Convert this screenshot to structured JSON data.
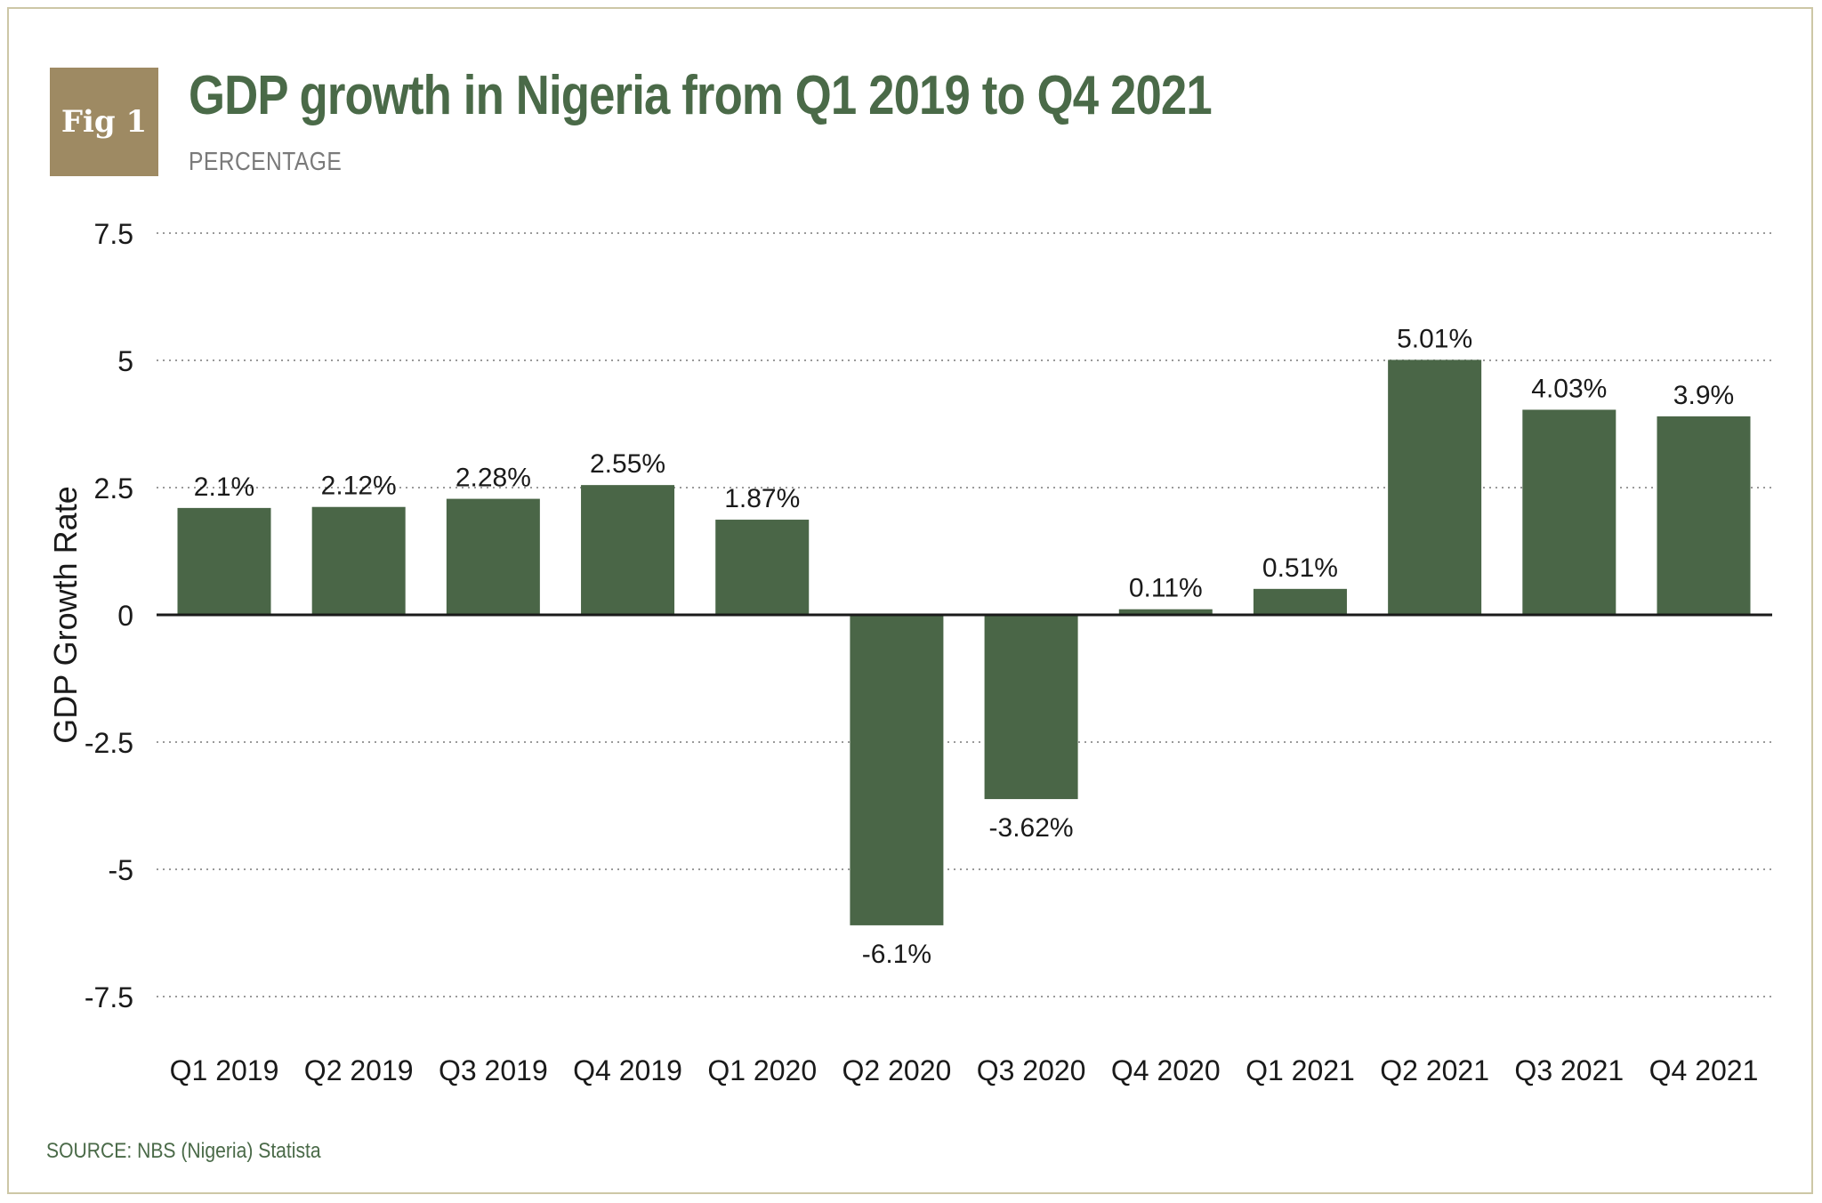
{
  "header": {
    "fig_label": "Fig 1",
    "title": "GDP growth in Nigeria from Q1 2019 to Q4 2021",
    "subtitle": "PERCENTAGE"
  },
  "footer": {
    "source": "SOURCE: NBS (Nigeria) Statista"
  },
  "colors": {
    "bar": "#4a6647",
    "title": "#4a6a48",
    "badge": "#9e8a63",
    "frame": "#cdc7a6",
    "grid": "#9a9a9a",
    "zero_line": "#1a1a1a"
  },
  "chart_data": {
    "type": "bar",
    "title": "GDP growth in Nigeria from Q1 2019 to Q4 2021",
    "subtitle": "PERCENTAGE",
    "xlabel": "",
    "ylabel": "GDP Growth Rate",
    "ylim": [
      -7.5,
      7.5
    ],
    "yticks": [
      7.5,
      5,
      2.5,
      0,
      -2.5,
      -5,
      -7.5
    ],
    "ytick_labels": [
      "7.5",
      "5",
      "2.5",
      "0",
      "-2.5",
      "-5",
      "-7.5"
    ],
    "grid": "horizontal-dotted",
    "categories": [
      "Q1 2019",
      "Q2 2019",
      "Q3 2019",
      "Q4 2019",
      "Q1 2020",
      "Q2 2020",
      "Q3 2020",
      "Q4 2020",
      "Q1 2021",
      "Q2 2021",
      "Q3 2021",
      "Q4 2021"
    ],
    "values": [
      2.1,
      2.12,
      2.28,
      2.55,
      1.87,
      -6.1,
      -3.62,
      0.11,
      0.51,
      5.01,
      4.03,
      3.9
    ],
    "data_labels": [
      "2.1%",
      "2.12%",
      "2.28%",
      "2.55%",
      "1.87%",
      "-6.1%",
      "-3.62%",
      "0.11%",
      "0.51%",
      "5.01%",
      "4.03%",
      "3.9%"
    ]
  }
}
